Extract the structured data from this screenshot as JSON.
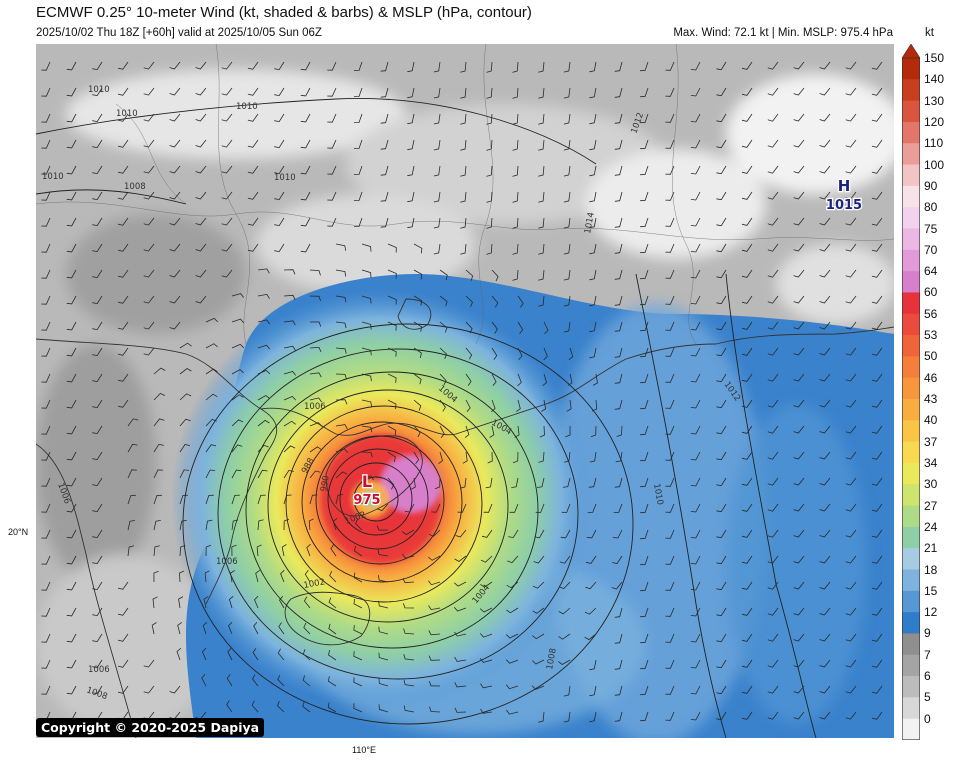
{
  "header": {
    "title": "ECMWF 0.25° 10-meter Wind (kt, shaded & barbs) & MSLP (hPa, contour)",
    "run_info": "2025/10/02 Thu 18Z [+60h] valid at 2025/10/05 Sun 06Z",
    "summary": "Max. Wind: 72.1 kt | Min. MSLP: 975.4 hPa"
  },
  "colorbar": {
    "unit": "kt",
    "ticks": [
      "150",
      "140",
      "130",
      "120",
      "110",
      "100",
      "90",
      "80",
      "75",
      "70",
      "64",
      "60",
      "56",
      "53",
      "50",
      "46",
      "43",
      "40",
      "37",
      "34",
      "30",
      "27",
      "24",
      "21",
      "18",
      "15",
      "12",
      "9",
      "7",
      "6",
      "5",
      "0"
    ],
    "colors": [
      "#b52a0a",
      "#c93e1f",
      "#d9553c",
      "#e4756a",
      "#eb9d99",
      "#f2c4c6",
      "#f8e2ea",
      "#f3d2ef",
      "#ebb7e3",
      "#e29bd8",
      "#d87fcb",
      "#e8313b",
      "#ec4a3a",
      "#f06439",
      "#f47e3a",
      "#f7963c",
      "#f9ad40",
      "#fac446",
      "#f8d94f",
      "#eae95c",
      "#cfe46f",
      "#aedb86",
      "#8fcfa6",
      "#a6cbe3",
      "#7db3de",
      "#5598d4",
      "#2f7cca",
      "#8f8f8f",
      "#a4a4a4",
      "#bcbcbc",
      "#d8d8d8",
      "#f2f2f2"
    ]
  },
  "map": {
    "low_center": {
      "letter": "L",
      "value": "975",
      "color": "#c8102e"
    },
    "high_center": {
      "letter": "H",
      "value": "1015",
      "color": "#1a237e"
    },
    "contour_labels": [
      "1010",
      "1010",
      "1010",
      "1010",
      "1008",
      "1012",
      "1014",
      "1010",
      "1006",
      "1004",
      "1012",
      "1010",
      "1006",
      "1002",
      "1008",
      "1006",
      "1008",
      "1006",
      "988",
      "990",
      "1002",
      "1004",
      "1004"
    ],
    "lat_label": "20°N",
    "lon_label": "110°E"
  },
  "footer": {
    "copyright": "Copyright © 2020-2025 Dapiya"
  }
}
